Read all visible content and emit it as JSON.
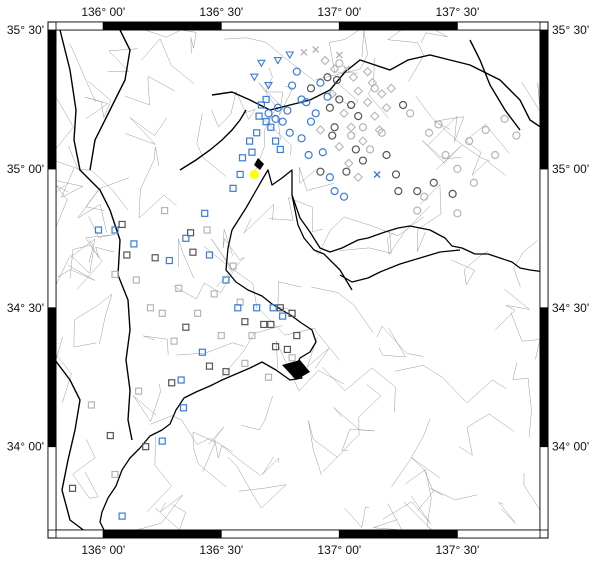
{
  "map": {
    "lon_range": [
      135.8,
      137.85
    ],
    "lat_range": [
      33.7,
      35.5
    ],
    "top_labels": [
      {
        "value": 136.0,
        "text": "136° 00'"
      },
      {
        "value": 136.5,
        "text": "136° 30'"
      },
      {
        "value": 137.0,
        "text": "137° 00'"
      },
      {
        "value": 137.5,
        "text": "137° 30'"
      }
    ],
    "bottom_labels": [
      {
        "value": 136.0,
        "text": "136° 00'"
      },
      {
        "value": 136.5,
        "text": "136° 30'"
      },
      {
        "value": 137.0,
        "text": "137° 00'"
      },
      {
        "value": 137.5,
        "text": "137° 30'"
      }
    ],
    "left_labels": [
      {
        "value": 35.5,
        "text": "35° 30'"
      },
      {
        "value": 35.0,
        "text": "35° 00'"
      },
      {
        "value": 34.5,
        "text": "34° 30'"
      },
      {
        "value": 34.0,
        "text": "34° 00'"
      }
    ],
    "right_labels": [
      {
        "value": 35.5,
        "text": "35° 30'"
      },
      {
        "value": 35.0,
        "text": "35° 00'"
      },
      {
        "value": 34.5,
        "text": "34° 30'"
      },
      {
        "value": 34.0,
        "text": "34° 00'"
      }
    ],
    "colors": {
      "frame": "#000000",
      "coast": "#000000",
      "boundary": "#9a9a9a",
      "blue_marker": "#3a7bd5",
      "dark_marker": "#555555",
      "light_marker": "#b5b5b5",
      "highlight": "#ffff00",
      "navy_marker": "#1a2a8a"
    },
    "stations_square_blue": [
      [
        136.59,
        35.04
      ],
      [
        136.63,
        35.06
      ],
      [
        136.62,
        35.1
      ],
      [
        136.58,
        34.98
      ],
      [
        136.55,
        34.93
      ],
      [
        136.43,
        34.84
      ],
      [
        136.35,
        34.75
      ],
      [
        136.45,
        34.69
      ],
      [
        136.52,
        34.6
      ],
      [
        136.57,
        34.5
      ],
      [
        136.28,
        34.67
      ],
      [
        136.13,
        34.73
      ],
      [
        135.98,
        34.78
      ],
      [
        136.05,
        34.78
      ],
      [
        136.65,
        34.5
      ],
      [
        136.72,
        34.5
      ],
      [
        136.76,
        34.47
      ],
      [
        136.42,
        34.34
      ],
      [
        136.33,
        34.24
      ],
      [
        136.34,
        34.14
      ],
      [
        136.25,
        34.02
      ],
      [
        136.08,
        33.75
      ],
      [
        136.67,
        35.23
      ],
      [
        136.69,
        35.25
      ],
      [
        136.66,
        35.19
      ],
      [
        136.69,
        35.17
      ],
      [
        136.71,
        35.15
      ],
      [
        136.73,
        35.1
      ],
      [
        136.75,
        35.07
      ],
      [
        136.65,
        35.13
      ]
    ],
    "stations_square_dark": [
      [
        136.37,
        34.77
      ],
      [
        136.22,
        34.68
      ],
      [
        136.38,
        34.7
      ],
      [
        136.75,
        34.5
      ],
      [
        136.8,
        34.48
      ],
      [
        136.82,
        34.4
      ],
      [
        136.78,
        34.35
      ],
      [
        136.6,
        34.45
      ],
      [
        136.68,
        34.44
      ],
      [
        136.08,
        34.8
      ],
      [
        136.1,
        34.69
      ],
      [
        136.45,
        34.29
      ],
      [
        136.52,
        34.27
      ],
      [
        136.35,
        34.43
      ],
      [
        136.29,
        34.23
      ],
      [
        136.18,
        34.0
      ],
      [
        136.03,
        34.04
      ],
      [
        135.87,
        33.85
      ],
      [
        136.71,
        34.44
      ],
      [
        136.73,
        34.36
      ]
    ],
    "stations_square_light": [
      [
        136.14,
        34.6
      ],
      [
        136.2,
        34.5
      ],
      [
        136.3,
        34.38
      ],
      [
        136.4,
        34.48
      ],
      [
        136.5,
        34.4
      ],
      [
        136.58,
        34.52
      ],
      [
        136.05,
        34.62
      ],
      [
        136.26,
        34.85
      ],
      [
        136.44,
        34.78
      ],
      [
        136.6,
        34.3
      ],
      [
        136.7,
        34.25
      ],
      [
        136.8,
        34.32
      ],
      [
        136.15,
        34.2
      ],
      [
        136.05,
        33.9
      ],
      [
        135.95,
        34.15
      ],
      [
        136.32,
        34.57
      ],
      [
        136.55,
        34.65
      ],
      [
        136.47,
        34.55
      ],
      [
        136.25,
        34.48
      ],
      [
        136.63,
        34.4
      ]
    ],
    "stations_circle_blue": [
      [
        136.82,
        35.35
      ],
      [
        136.8,
        35.3
      ],
      [
        136.84,
        35.25
      ],
      [
        136.78,
        35.21
      ],
      [
        136.76,
        35.17
      ],
      [
        136.79,
        35.13
      ],
      [
        136.84,
        35.11
      ],
      [
        136.88,
        35.17
      ],
      [
        136.9,
        35.2
      ],
      [
        136.86,
        35.24
      ],
      [
        136.92,
        35.31
      ],
      [
        136.95,
        35.26
      ],
      [
        136.93,
        35.06
      ],
      [
        136.96,
        34.97
      ],
      [
        136.98,
        34.92
      ],
      [
        137.02,
        34.9
      ],
      [
        136.87,
        35.05
      ],
      [
        136.74,
        35.22
      ],
      [
        136.73,
        35.18
      ],
      [
        136.7,
        35.2
      ]
    ],
    "stations_circle_dark": [
      [
        136.95,
        35.33
      ],
      [
        136.99,
        35.32
      ],
      [
        136.96,
        35.22
      ],
      [
        136.88,
        35.29
      ],
      [
        137.0,
        35.25
      ],
      [
        137.05,
        35.23
      ],
      [
        137.08,
        35.19
      ],
      [
        136.97,
        35.12
      ],
      [
        137.07,
        35.07
      ],
      [
        137.1,
        35.03
      ],
      [
        137.2,
        35.05
      ],
      [
        137.24,
        34.98
      ],
      [
        137.25,
        34.92
      ],
      [
        137.33,
        34.92
      ],
      [
        137.4,
        34.95
      ],
      [
        137.48,
        34.91
      ],
      [
        137.03,
        34.99
      ],
      [
        136.98,
        35.15
      ],
      [
        137.27,
        35.23
      ],
      [
        136.92,
        34.99
      ]
    ],
    "stations_circle_light": [
      [
        137.15,
        35.29
      ],
      [
        137.3,
        35.2
      ],
      [
        137.38,
        35.13
      ],
      [
        137.45,
        35.05
      ],
      [
        137.55,
        35.1
      ],
      [
        137.62,
        35.14
      ],
      [
        137.7,
        35.18
      ],
      [
        137.75,
        35.12
      ],
      [
        137.66,
        35.05
      ],
      [
        137.5,
        35.0
      ],
      [
        137.36,
        34.9
      ],
      [
        137.33,
        34.85
      ],
      [
        137.5,
        34.84
      ],
      [
        137.1,
        35.15
      ],
      [
        137.13,
        35.07
      ],
      [
        137.05,
        35.12
      ],
      [
        137.0,
        35.38
      ],
      [
        137.18,
        35.13
      ],
      [
        137.57,
        34.95
      ],
      [
        137.42,
        35.16
      ]
    ],
    "stations_diamond_light": [
      [
        136.97,
        35.27
      ],
      [
        137.02,
        35.2
      ],
      [
        137.05,
        35.15
      ],
      [
        137.08,
        35.28
      ],
      [
        137.12,
        35.24
      ],
      [
        137.15,
        35.19
      ],
      [
        137.17,
        35.14
      ],
      [
        137.0,
        35.08
      ],
      [
        137.04,
        35.02
      ],
      [
        137.1,
        35.1
      ],
      [
        137.14,
        35.31
      ],
      [
        137.2,
        35.22
      ],
      [
        137.08,
        34.97
      ],
      [
        136.94,
        35.39
      ],
      [
        137.12,
        35.35
      ],
      [
        136.92,
        35.14
      ],
      [
        137.18,
        35.27
      ],
      [
        136.98,
        35.36
      ],
      [
        137.06,
        35.33
      ],
      [
        137.22,
        35.29
      ]
    ],
    "stations_tri_blue": [
      [
        136.67,
        35.38
      ],
      [
        136.74,
        35.39
      ],
      [
        136.79,
        35.41
      ],
      [
        136.7,
        35.3
      ],
      [
        136.64,
        35.33
      ]
    ],
    "stations_x_light": [
      [
        136.85,
        35.42
      ],
      [
        136.9,
        35.43
      ],
      [
        137.03,
        35.36
      ],
      [
        137.0,
        35.41
      ]
    ],
    "stations_x_blue": [
      [
        137.16,
        34.98
      ]
    ],
    "highlight_station": [
      136.64,
      34.98
    ]
  }
}
